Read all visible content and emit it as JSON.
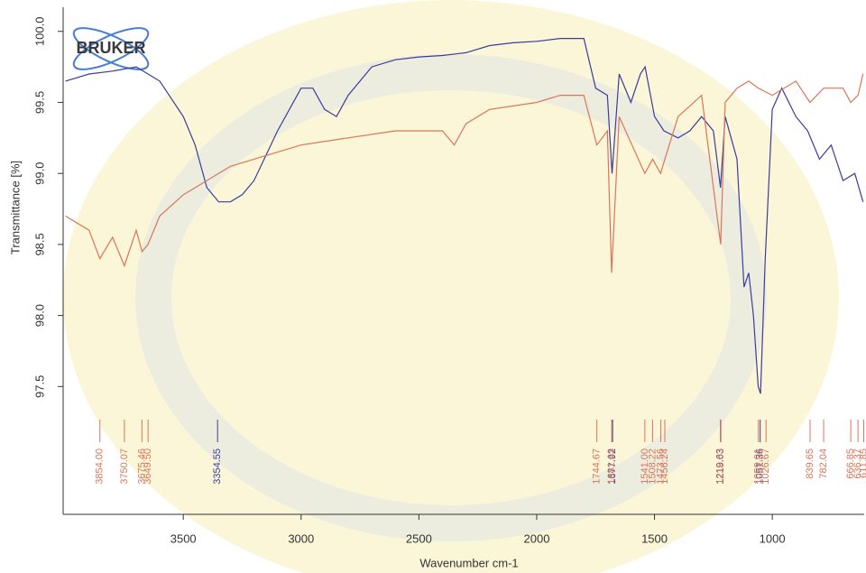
{
  "chart_data": {
    "type": "line",
    "logo": "BRUKER",
    "xlabel": "Wavenumber cm-1",
    "ylabel": "Transmittance [%]",
    "xlim": [
      4010,
      610
    ],
    "ylim": [
      96.6,
      100.17
    ],
    "xticks": [
      3500,
      3000,
      2500,
      2000,
      1500,
      1000
    ],
    "yticks": [
      {
        "value": 100,
        "label": "100.0"
      },
      99.5,
      {
        "value": 99,
        "label": "99.0"
      },
      98.5,
      {
        "value": 98,
        "label": "98.0"
      },
      97.5
    ],
    "series": [
      {
        "color": "#3c3c9a",
        "x": [
          4000,
          3900,
          3800,
          3700,
          3600,
          3500,
          3450,
          3400,
          3350,
          3300,
          3250,
          3200,
          3100,
          3000,
          2950,
          2900,
          2850,
          2800,
          2700,
          2600,
          2500,
          2400,
          2300,
          2200,
          2100,
          2000,
          1900,
          1800,
          1750,
          1700,
          1680,
          1650,
          1600,
          1560,
          1540,
          1500,
          1460,
          1400,
          1350,
          1300,
          1250,
          1220,
          1200,
          1150,
          1120,
          1100,
          1080,
          1060,
          1050,
          1030,
          1000,
          960,
          900,
          850,
          800,
          750,
          700,
          650,
          615
        ],
        "values": [
          99.65,
          99.7,
          99.72,
          99.75,
          99.65,
          99.4,
          99.2,
          98.9,
          98.8,
          98.8,
          98.85,
          98.95,
          99.3,
          99.6,
          99.6,
          99.45,
          99.4,
          99.55,
          99.75,
          99.8,
          99.82,
          99.83,
          99.85,
          99.9,
          99.92,
          99.93,
          99.95,
          99.95,
          99.6,
          99.55,
          99.0,
          99.7,
          99.5,
          99.7,
          99.75,
          99.4,
          99.3,
          99.25,
          99.3,
          99.4,
          99.3,
          98.9,
          99.4,
          99.1,
          98.2,
          98.3,
          98.0,
          97.5,
          97.45,
          98.4,
          99.45,
          99.6,
          99.4,
          99.3,
          99.1,
          99.2,
          98.95,
          99.0,
          98.8
        ],
        "peaks": [
          {
            "value": 3354.55,
            "label": "3354.55"
          },
          {
            "value": 1677.92,
            "label": "1677.92"
          },
          {
            "value": 1219.63,
            "label": "1219.63"
          },
          {
            "value": 1051.36,
            "label": "1051.36"
          }
        ]
      },
      {
        "color": "#d9765a",
        "x": [
          4000,
          3900,
          3854,
          3800,
          3750,
          3700,
          3675,
          3650,
          3600,
          3500,
          3400,
          3300,
          3200,
          3000,
          2800,
          2600,
          2400,
          2350,
          2300,
          2200,
          2000,
          1900,
          1800,
          1745,
          1700,
          1682,
          1650,
          1541,
          1508,
          1474,
          1456,
          1400,
          1300,
          1219,
          1200,
          1150,
          1100,
          1059,
          1000,
          900,
          840,
          782,
          700,
          667,
          636,
          615
        ],
        "values": [
          98.7,
          98.6,
          98.4,
          98.55,
          98.35,
          98.6,
          98.45,
          98.5,
          98.7,
          98.85,
          98.95,
          99.05,
          99.1,
          99.2,
          99.25,
          99.3,
          99.3,
          99.2,
          99.35,
          99.45,
          99.5,
          99.55,
          99.55,
          99.2,
          99.3,
          98.3,
          99.4,
          99.0,
          99.1,
          99.0,
          99.1,
          99.4,
          99.55,
          98.5,
          99.5,
          99.6,
          99.65,
          99.6,
          99.55,
          99.65,
          99.5,
          99.6,
          99.6,
          99.5,
          99.55,
          99.7
        ],
        "peaks": [
          {
            "value": 3854.0,
            "label": "3854.00"
          },
          {
            "value": 3750.07,
            "label": "3750.07"
          },
          {
            "value": 3675.46,
            "label": "3675.46"
          },
          {
            "value": 3649.5,
            "label": "3649.50"
          },
          {
            "value": 1744.67,
            "label": "1744.67"
          },
          {
            "value": 1681.63,
            "label": "1681.63"
          },
          {
            "value": 1541.0,
            "label": "1541.00"
          },
          {
            "value": 1508.22,
            "label": "1508.22"
          },
          {
            "value": 1473.56,
            "label": "1473.56"
          },
          {
            "value": 1456.24,
            "label": "1456.24"
          },
          {
            "value": 1218.03,
            "label": "1218.03"
          },
          {
            "value": 1059.01,
            "label": "1059.01"
          },
          {
            "value": 1026.67,
            "label": "1026.67"
          },
          {
            "value": 839.65,
            "label": "839.65"
          },
          {
            "value": 782.04,
            "label": "782.04"
          },
          {
            "value": 666.85,
            "label": "666.85"
          },
          {
            "value": 636.37,
            "label": "636.37"
          },
          {
            "value": 611.85,
            "label": "611.85"
          }
        ]
      }
    ]
  }
}
